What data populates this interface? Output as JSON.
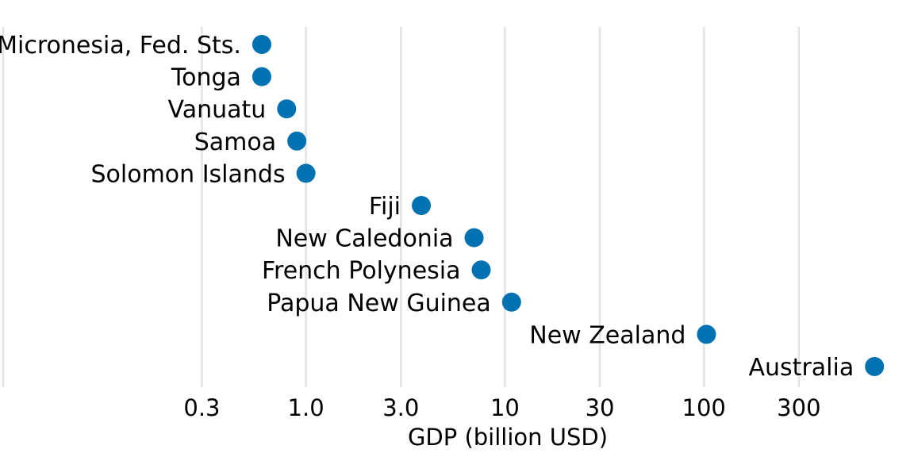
{
  "chart_data": {
    "type": "scatter",
    "title": "",
    "xlabel": "GDP (billion USD)",
    "ylabel": "",
    "xscale": "log",
    "xlim": [
      0.1,
      1000
    ],
    "xticks": [
      0.3,
      1.0,
      3.0,
      10,
      30,
      100,
      300
    ],
    "xtick_labels": [
      "0.3",
      "1.0",
      "3.0",
      "10",
      "30",
      "100",
      "300"
    ],
    "grid": "vertical",
    "legend": "none",
    "marker_color": "#0072b2",
    "points": [
      {
        "label": "Micronesia, Fed. Sts.",
        "x": 0.6
      },
      {
        "label": "Tonga",
        "x": 0.6
      },
      {
        "label": "Vanuatu",
        "x": 0.8
      },
      {
        "label": "Samoa",
        "x": 0.9
      },
      {
        "label": "Solomon Islands",
        "x": 1.0
      },
      {
        "label": "Fiji",
        "x": 3.8
      },
      {
        "label": "New Caledonia",
        "x": 7.0
      },
      {
        "label": "French Polynesia",
        "x": 7.6
      },
      {
        "label": "Papua New Guinea",
        "x": 10.8
      },
      {
        "label": "New Zealand",
        "x": 103.0
      },
      {
        "label": "Australia",
        "x": 720.0
      }
    ]
  }
}
